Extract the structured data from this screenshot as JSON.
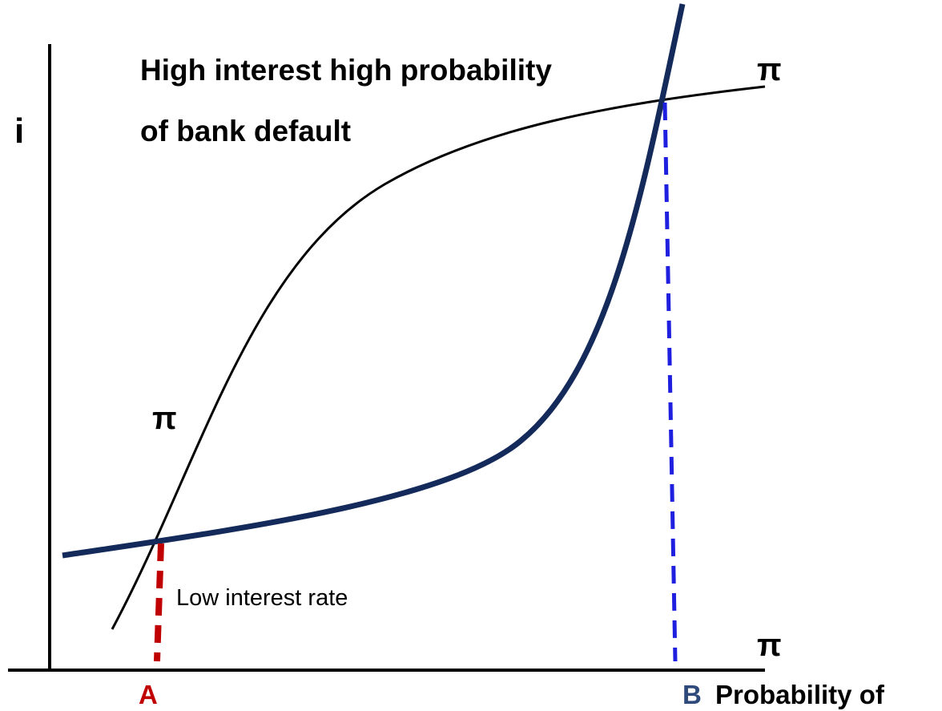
{
  "labels": {
    "y_axis": "i",
    "title_line1": "High interest high probability",
    "title_line2": "of bank default",
    "pi_top": "π",
    "pi_middle": "π",
    "pi_bottom": "π",
    "low_rate": "Low interest rate",
    "point_a": "A",
    "point_b": "B",
    "x_axis": "Probability of"
  }
}
